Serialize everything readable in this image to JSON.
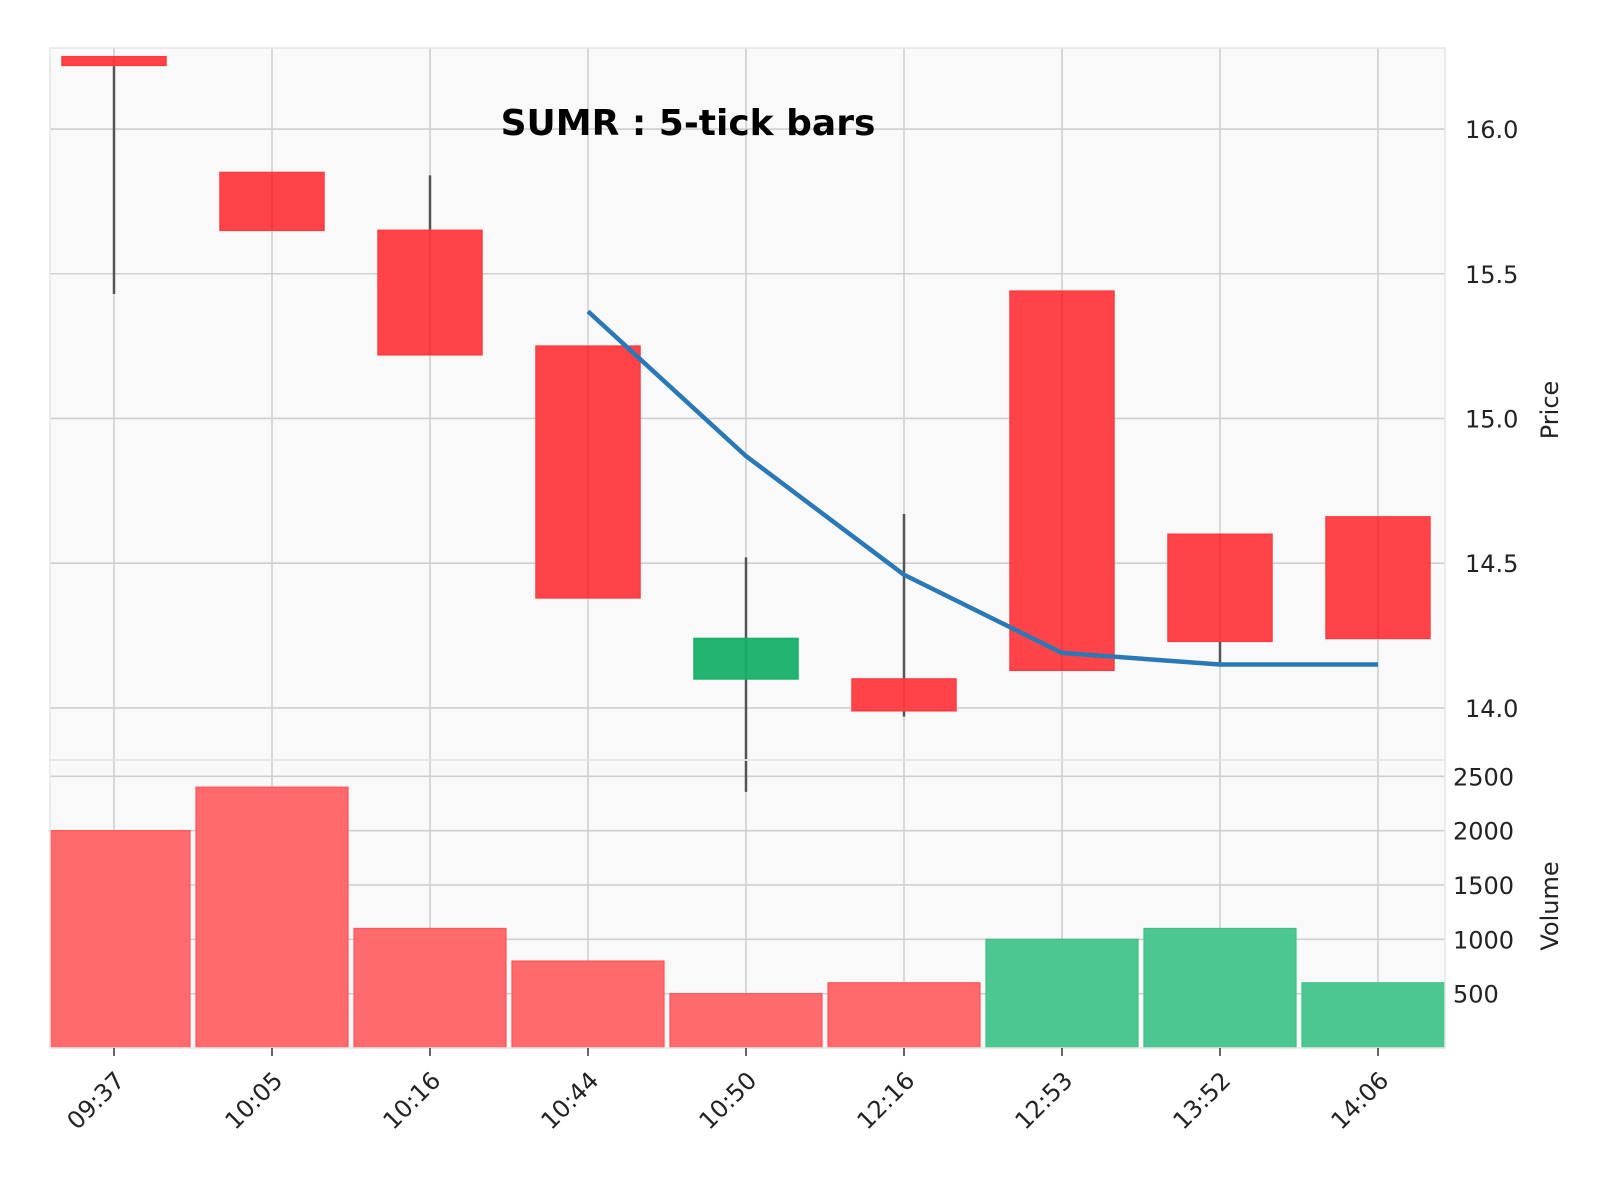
{
  "chart_data": {
    "type": "candlestick",
    "title": "SUMR : 5-tick bars",
    "x_tick_labels": [
      "09:37",
      "10:05",
      "10:16",
      "10:44",
      "10:50",
      "12:16",
      "12:53",
      "13:52",
      "14:06"
    ],
    "price_axis": {
      "label": "Price",
      "ticks": [
        14.0,
        14.5,
        15.0,
        15.5,
        16.0
      ],
      "tick_labels": [
        "14.0",
        "14.5",
        "15.0",
        "15.5",
        "16.0"
      ],
      "ylim": [
        13.82,
        16.28
      ]
    },
    "volume_axis": {
      "label": "Volume",
      "ticks": [
        500,
        1000,
        1500,
        2000,
        2500
      ],
      "tick_labels": [
        "500",
        "1000",
        "1500",
        "2000",
        "2500"
      ],
      "ylim": [
        0,
        2650
      ]
    },
    "bars": [
      {
        "time": "09:37",
        "open": 16.25,
        "high": 16.25,
        "low": 15.43,
        "close": 16.22,
        "volume": 2000
      },
      {
        "time": "10:05",
        "open": 15.85,
        "high": 15.85,
        "low": 15.65,
        "close": 15.65,
        "volume": 2400
      },
      {
        "time": "10:16",
        "open": 15.65,
        "high": 15.84,
        "low": 15.22,
        "close": 15.22,
        "volume": 1100
      },
      {
        "time": "10:44",
        "open": 15.25,
        "high": 15.25,
        "low": 14.38,
        "close": 14.38,
        "volume": 800
      },
      {
        "time": "10:50",
        "open": 14.1,
        "high": 14.52,
        "low": 13.71,
        "close": 14.24,
        "volume": 500
      },
      {
        "time": "12:16",
        "open": 14.1,
        "high": 14.67,
        "low": 13.97,
        "close": 13.99,
        "volume": 600
      },
      {
        "time": "12:53",
        "open": 15.44,
        "high": 15.44,
        "low": 14.13,
        "close": 14.13,
        "volume": 1000
      },
      {
        "time": "13:52",
        "open": 14.6,
        "high": 14.6,
        "low": 14.15,
        "close": 14.23,
        "volume": 1100
      },
      {
        "time": "14:06",
        "open": 14.66,
        "high": 14.66,
        "low": 14.24,
        "close": 14.24,
        "volume": 600
      }
    ],
    "moving_average": {
      "start_index": 3,
      "values": [
        15.37,
        14.87,
        14.46,
        14.19,
        14.15,
        14.15
      ]
    },
    "volume_colors": [
      "down",
      "down",
      "down",
      "down",
      "down",
      "down",
      "up",
      "up",
      "up"
    ],
    "colors": {
      "up": "#16b068",
      "down": "#ff3a3f",
      "volume_up": "#4cc792",
      "volume_down": "#ff6a6c",
      "moving_average": "#2a78b6",
      "wick": "#555555",
      "panel_background": "#f9f9f9"
    },
    "grid": true
  }
}
